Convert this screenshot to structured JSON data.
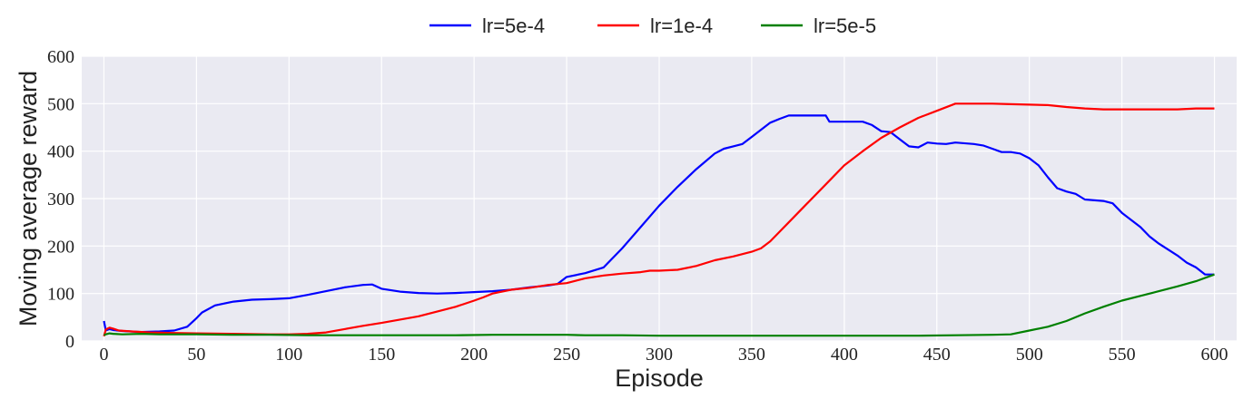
{
  "chart_data": {
    "type": "line",
    "title": "",
    "xlabel": "Episode",
    "ylabel": "Moving average reward",
    "xlim": [
      -12,
      612
    ],
    "ylim": [
      0,
      600
    ],
    "xticks": [
      0,
      50,
      100,
      150,
      200,
      250,
      300,
      350,
      400,
      450,
      500,
      550,
      600
    ],
    "yticks": [
      0,
      100,
      200,
      300,
      400,
      500,
      600
    ],
    "grid": true,
    "legend_position": "top-center",
    "background": "#eaeaf2",
    "series": [
      {
        "name": "lr=5e-4",
        "color": "#0000ff",
        "points": [
          [
            0,
            42
          ],
          [
            1,
            22
          ],
          [
            3,
            25
          ],
          [
            5,
            23
          ],
          [
            10,
            21
          ],
          [
            20,
            19
          ],
          [
            30,
            20
          ],
          [
            38,
            22
          ],
          [
            45,
            30
          ],
          [
            50,
            48
          ],
          [
            53,
            60
          ],
          [
            60,
            75
          ],
          [
            70,
            83
          ],
          [
            80,
            87
          ],
          [
            90,
            88
          ],
          [
            100,
            90
          ],
          [
            110,
            97
          ],
          [
            120,
            105
          ],
          [
            130,
            113
          ],
          [
            140,
            118
          ],
          [
            145,
            119
          ],
          [
            150,
            110
          ],
          [
            160,
            104
          ],
          [
            170,
            101
          ],
          [
            180,
            100
          ],
          [
            190,
            101
          ],
          [
            200,
            103
          ],
          [
            210,
            105
          ],
          [
            220,
            108
          ],
          [
            230,
            113
          ],
          [
            240,
            117
          ],
          [
            245,
            120
          ],
          [
            250,
            135
          ],
          [
            260,
            143
          ],
          [
            270,
            155
          ],
          [
            280,
            195
          ],
          [
            290,
            240
          ],
          [
            300,
            285
          ],
          [
            310,
            325
          ],
          [
            320,
            362
          ],
          [
            330,
            395
          ],
          [
            335,
            405
          ],
          [
            340,
            410
          ],
          [
            345,
            415
          ],
          [
            350,
            430
          ],
          [
            360,
            460
          ],
          [
            365,
            468
          ],
          [
            370,
            475
          ],
          [
            380,
            475
          ],
          [
            390,
            475
          ],
          [
            392,
            462
          ],
          [
            400,
            462
          ],
          [
            410,
            462
          ],
          [
            415,
            455
          ],
          [
            420,
            442
          ],
          [
            425,
            440
          ],
          [
            430,
            425
          ],
          [
            435,
            410
          ],
          [
            440,
            408
          ],
          [
            445,
            418
          ],
          [
            450,
            416
          ],
          [
            455,
            415
          ],
          [
            460,
            418
          ],
          [
            470,
            415
          ],
          [
            475,
            412
          ],
          [
            480,
            405
          ],
          [
            485,
            398
          ],
          [
            490,
            398
          ],
          [
            495,
            395
          ],
          [
            500,
            385
          ],
          [
            505,
            370
          ],
          [
            510,
            345
          ],
          [
            515,
            322
          ],
          [
            520,
            315
          ],
          [
            525,
            310
          ],
          [
            530,
            298
          ],
          [
            540,
            295
          ],
          [
            545,
            290
          ],
          [
            550,
            270
          ],
          [
            560,
            240
          ],
          [
            565,
            220
          ],
          [
            570,
            205
          ],
          [
            580,
            180
          ],
          [
            585,
            165
          ],
          [
            590,
            155
          ],
          [
            595,
            140
          ],
          [
            600,
            140
          ]
        ]
      },
      {
        "name": "lr=1e-4",
        "color": "#ff0000",
        "points": [
          [
            0,
            10
          ],
          [
            1,
            24
          ],
          [
            3,
            28
          ],
          [
            5,
            26
          ],
          [
            8,
            22
          ],
          [
            15,
            20
          ],
          [
            25,
            18
          ],
          [
            35,
            17
          ],
          [
            50,
            16
          ],
          [
            70,
            15
          ],
          [
            90,
            14
          ],
          [
            100,
            14
          ],
          [
            110,
            15
          ],
          [
            120,
            18
          ],
          [
            130,
            25
          ],
          [
            140,
            32
          ],
          [
            150,
            38
          ],
          [
            160,
            45
          ],
          [
            170,
            52
          ],
          [
            180,
            62
          ],
          [
            190,
            72
          ],
          [
            200,
            85
          ],
          [
            205,
            92
          ],
          [
            210,
            100
          ],
          [
            220,
            108
          ],
          [
            230,
            112
          ],
          [
            240,
            118
          ],
          [
            250,
            122
          ],
          [
            260,
            132
          ],
          [
            270,
            138
          ],
          [
            280,
            142
          ],
          [
            290,
            145
          ],
          [
            295,
            148
          ],
          [
            300,
            148
          ],
          [
            310,
            150
          ],
          [
            320,
            158
          ],
          [
            330,
            170
          ],
          [
            340,
            178
          ],
          [
            350,
            188
          ],
          [
            355,
            195
          ],
          [
            360,
            210
          ],
          [
            370,
            250
          ],
          [
            380,
            290
          ],
          [
            390,
            330
          ],
          [
            400,
            370
          ],
          [
            410,
            400
          ],
          [
            420,
            428
          ],
          [
            430,
            450
          ],
          [
            440,
            470
          ],
          [
            450,
            485
          ],
          [
            460,
            500
          ],
          [
            470,
            500
          ],
          [
            480,
            500
          ],
          [
            490,
            499
          ],
          [
            500,
            498
          ],
          [
            510,
            497
          ],
          [
            520,
            493
          ],
          [
            530,
            490
          ],
          [
            540,
            488
          ],
          [
            560,
            488
          ],
          [
            580,
            488
          ],
          [
            590,
            490
          ],
          [
            600,
            490
          ]
        ]
      },
      {
        "name": "lr=5e-5",
        "color": "#008000",
        "points": [
          [
            0,
            12
          ],
          [
            1,
            14
          ],
          [
            3,
            16
          ],
          [
            5,
            15
          ],
          [
            10,
            14
          ],
          [
            20,
            15
          ],
          [
            30,
            14
          ],
          [
            50,
            14
          ],
          [
            70,
            13
          ],
          [
            90,
            13
          ],
          [
            110,
            12
          ],
          [
            130,
            12
          ],
          [
            150,
            12
          ],
          [
            170,
            12
          ],
          [
            190,
            12
          ],
          [
            210,
            13
          ],
          [
            230,
            13
          ],
          [
            250,
            13
          ],
          [
            260,
            12
          ],
          [
            280,
            12
          ],
          [
            300,
            11
          ],
          [
            320,
            11
          ],
          [
            340,
            11
          ],
          [
            360,
            11
          ],
          [
            380,
            11
          ],
          [
            400,
            11
          ],
          [
            420,
            11
          ],
          [
            440,
            11
          ],
          [
            460,
            12
          ],
          [
            480,
            13
          ],
          [
            490,
            14
          ],
          [
            500,
            22
          ],
          [
            510,
            30
          ],
          [
            520,
            42
          ],
          [
            530,
            58
          ],
          [
            540,
            72
          ],
          [
            550,
            85
          ],
          [
            560,
            95
          ],
          [
            570,
            105
          ],
          [
            580,
            115
          ],
          [
            590,
            126
          ],
          [
            600,
            140
          ]
        ]
      }
    ]
  }
}
